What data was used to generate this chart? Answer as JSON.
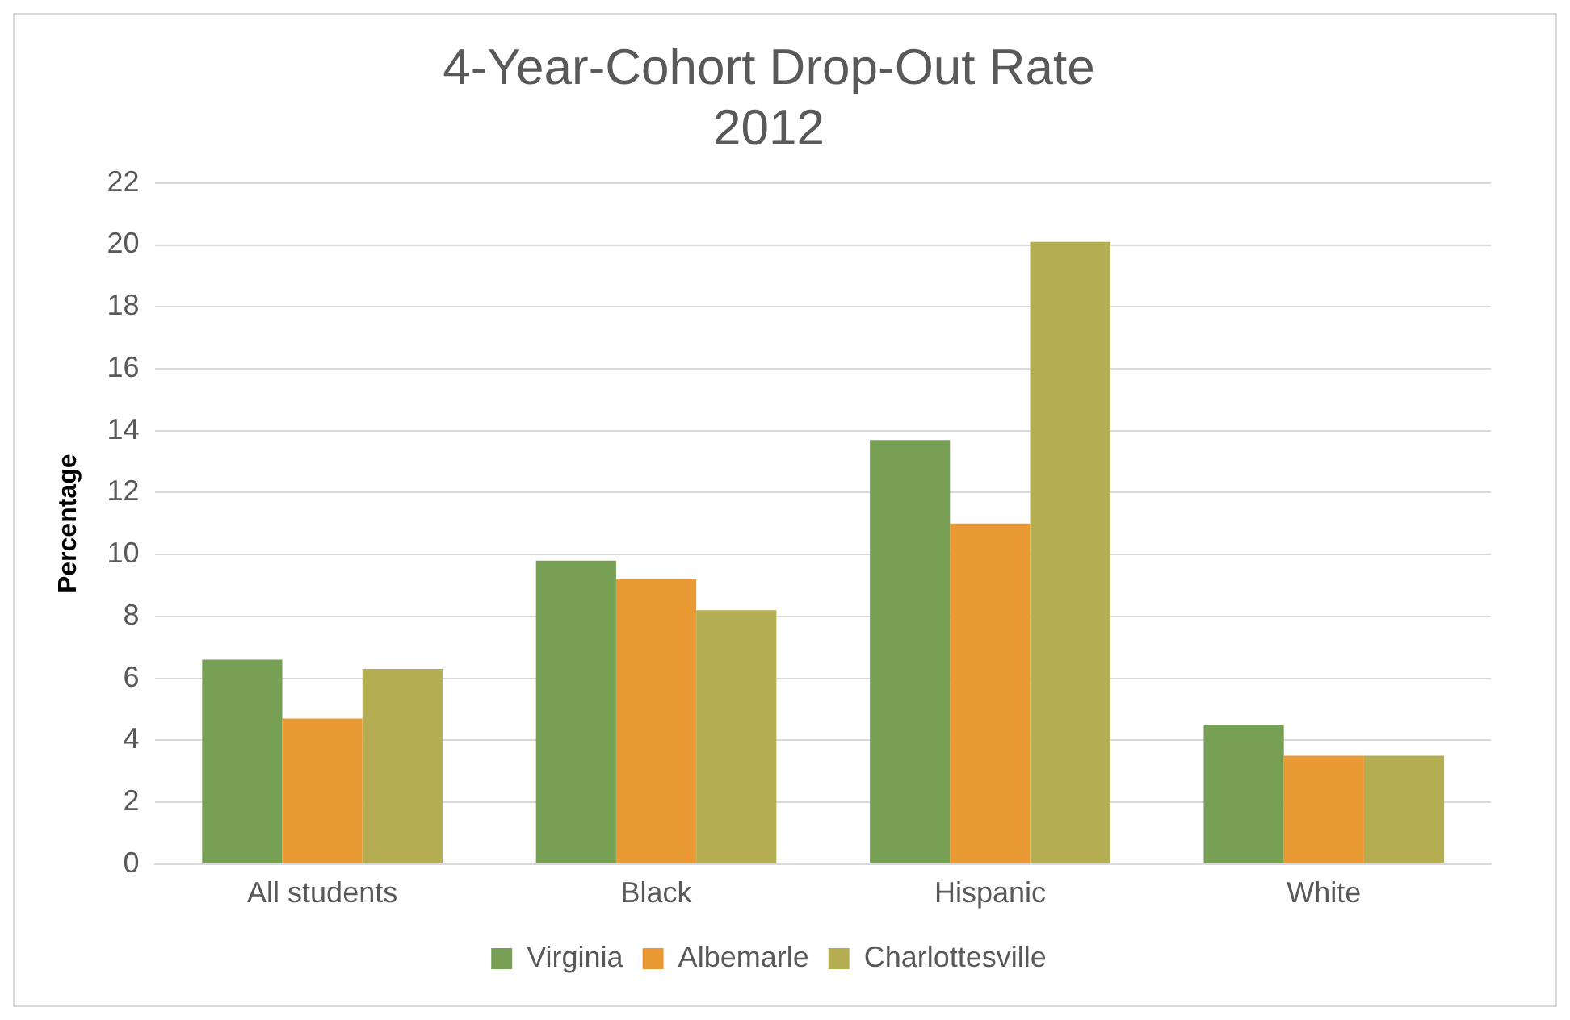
{
  "chart_data": {
    "type": "bar",
    "title": "4-Year-Cohort Drop-Out Rate",
    "subtitle": "2012",
    "ylabel": "Percentage",
    "categories": [
      "All students",
      "Black",
      "Hispanic",
      "White"
    ],
    "series": [
      {
        "name": "Virginia",
        "color": "#77a055",
        "values": [
          6.6,
          9.8,
          13.7,
          4.5
        ]
      },
      {
        "name": "Albemarle",
        "color": "#e99a35",
        "values": [
          4.7,
          9.2,
          11.0,
          3.5
        ]
      },
      {
        "name": "Charlottesville",
        "color": "#b5ad52",
        "values": [
          6.3,
          8.2,
          20.1,
          3.5
        ]
      }
    ],
    "ylim": [
      0,
      22
    ],
    "yticks": [
      0,
      2,
      4,
      6,
      8,
      10,
      12,
      14,
      16,
      18,
      20,
      22
    ],
    "grid": "y",
    "legend": "bottom"
  }
}
